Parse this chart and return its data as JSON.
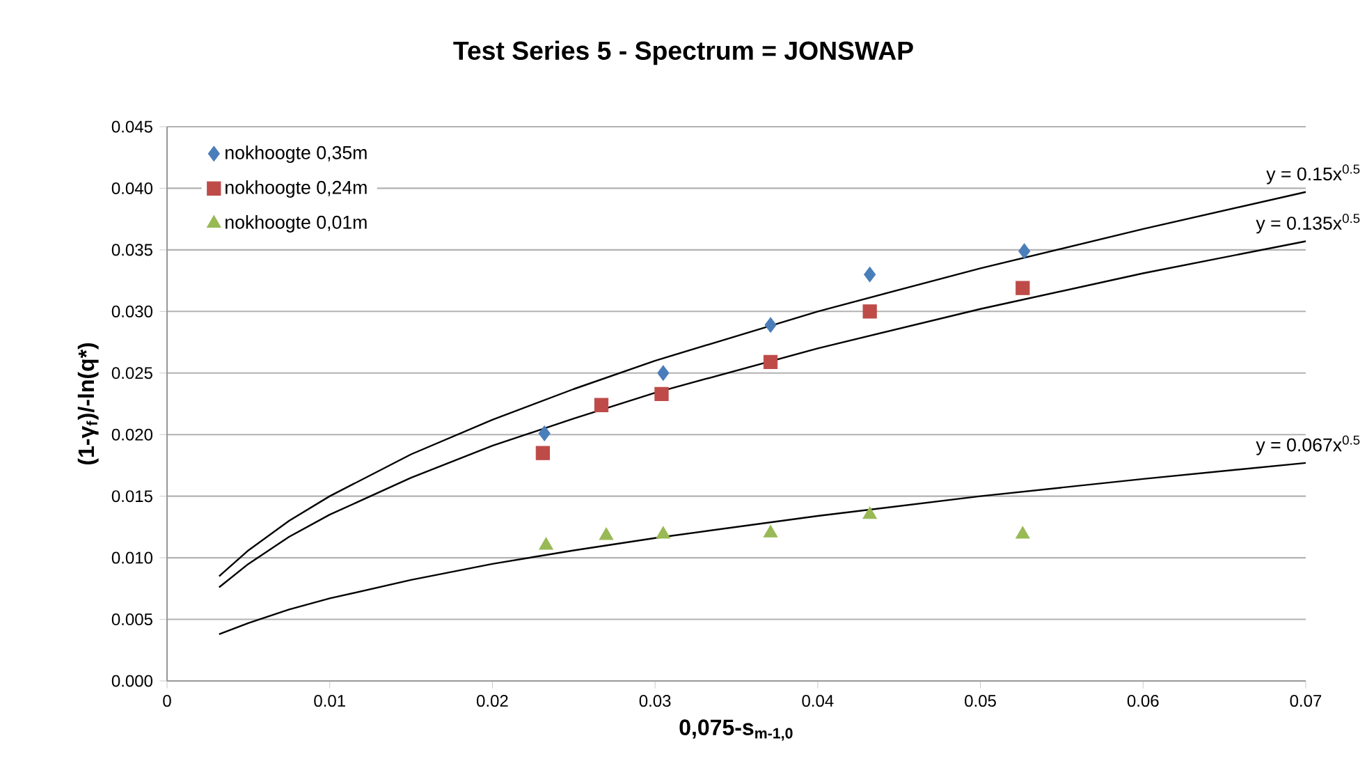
{
  "chart_data": {
    "type": "scatter",
    "title": "Test Series 5 - Spectrum = JONSWAP",
    "xlabel": "0,075-s$_{m-1,0}$",
    "ylabel": "(1-γ$_{f}$)/-ln(q*)",
    "xlim": [
      0,
      0.07
    ],
    "xticks": [
      0,
      0.01,
      0.02,
      0.03,
      0.04,
      0.05,
      0.06,
      0.07
    ],
    "ylim": [
      0,
      0.045
    ],
    "yticks": [
      {
        "value": 0,
        "label": "0.000"
      },
      {
        "value": 0.005,
        "label": "0.005"
      },
      {
        "value": 0.01,
        "label": "0.010"
      },
      {
        "value": 0.015,
        "label": "0.015"
      },
      {
        "value": 0.02,
        "label": "0.020"
      },
      {
        "value": 0.025,
        "label": "0.025"
      },
      {
        "value": 0.03,
        "label": "0.030"
      },
      {
        "value": 0.035,
        "label": "0.035"
      },
      {
        "value": 0.04,
        "label": "0.040"
      },
      {
        "value": 0.045,
        "label": "0.045"
      }
    ],
    "grid": "y",
    "legend": "top left",
    "series": [
      {
        "name": "nokhoogte 0,35m",
        "marker": "diamond",
        "color": "#4a7ebb",
        "x": [
          0.0232,
          0.0305,
          0.0371,
          0.0432,
          0.0527
        ],
        "values": [
          0.0201,
          0.025,
          0.0289,
          0.033,
          0.0349
        ]
      },
      {
        "name": "nokhoogte 0,24m",
        "marker": "square",
        "color": "#be4b48",
        "x": [
          0.0231,
          0.0267,
          0.0304,
          0.0371,
          0.0432,
          0.0526
        ],
        "values": [
          0.0185,
          0.0224,
          0.0233,
          0.0259,
          0.03,
          0.0319
        ]
      },
      {
        "name": "nokhoogte 0,01m",
        "marker": "triangle",
        "color": "#98b954",
        "x": [
          0.0233,
          0.027,
          0.0305,
          0.0371,
          0.0432,
          0.0526
        ],
        "values": [
          0.011,
          0.0118,
          0.0119,
          0.012,
          0.0135,
          0.0119
        ]
      },
      {
        "type": "line",
        "marker": "none",
        "color": "#000000",
        "x": [
          0.0032,
          0.005,
          0.0075,
          0.01,
          0.015,
          0.02,
          0.025,
          0.03,
          0.04,
          0.05,
          0.06,
          0.07
        ],
        "values": [
          0.0085,
          0.0106,
          0.013,
          0.015,
          0.0184,
          0.0212,
          0.0237,
          0.026,
          0.03,
          0.0335,
          0.0367,
          0.0397
        ]
      },
      {
        "type": "line",
        "marker": "none",
        "color": "#000000",
        "x": [
          0.0032,
          0.005,
          0.0075,
          0.01,
          0.015,
          0.02,
          0.025,
          0.03,
          0.04,
          0.05,
          0.06,
          0.07
        ],
        "values": [
          0.0076,
          0.0095,
          0.0117,
          0.0135,
          0.0165,
          0.0191,
          0.0213,
          0.0234,
          0.027,
          0.0302,
          0.0331,
          0.0357
        ]
      },
      {
        "type": "line",
        "marker": "none",
        "color": "#000000",
        "x": [
          0.0032,
          0.005,
          0.0075,
          0.01,
          0.015,
          0.02,
          0.025,
          0.03,
          0.04,
          0.05,
          0.06,
          0.07
        ],
        "values": [
          0.0038,
          0.0047,
          0.0058,
          0.0067,
          0.0082,
          0.0095,
          0.0106,
          0.0116,
          0.0134,
          0.015,
          0.0164,
          0.0177
        ]
      }
    ],
    "annotations": [
      "y = 0.15x$^{0.5}$",
      "y = 0.135x$^{0.5}$",
      "y = 0.067x$^{0.5}$"
    ]
  }
}
